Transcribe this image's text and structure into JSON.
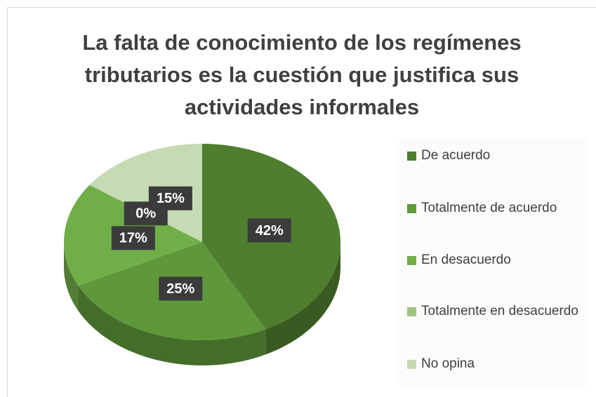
{
  "chart_data": {
    "type": "pie3d",
    "title": [
      "La falta de conocimiento de los regímenes",
      "tributarios es la cuestión que justifica sus",
      "actividades informales"
    ],
    "categories": [
      "De acuerdo",
      "Totalmente de acuerdo",
      "En desacuerdo",
      "Totalmente en desacuerdo",
      "No opina"
    ],
    "values": [
      42,
      25,
      17,
      0,
      15
    ],
    "value_labels": [
      "42%",
      "25%",
      "17%",
      "0%",
      "15%"
    ],
    "colors": [
      "#4f7e2e",
      "#5e983a",
      "#70af48",
      "#9cc47e",
      "#c4dbb3"
    ],
    "legend": "right"
  }
}
